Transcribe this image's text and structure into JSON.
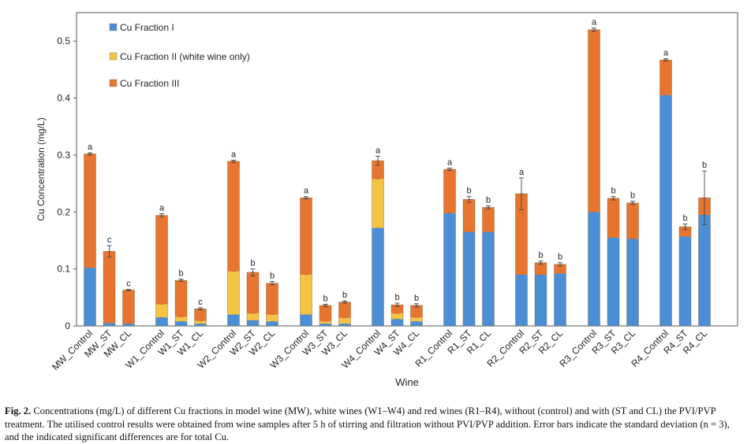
{
  "chart_data": {
    "type": "bar",
    "stacked": true,
    "ylabel": "Cu Concentration (mg/L)",
    "xlabel": "Wine",
    "ylim": [
      0,
      0.55
    ],
    "yticks": [
      "0",
      "0.1",
      "0.2",
      "0.3",
      "0.4",
      "0.5"
    ],
    "grid": false,
    "legend_position": "top-left",
    "categories": [
      "MW_Control",
      "MW_ST",
      "MW_CL",
      "W1_Control",
      "W1_ST",
      "W1_CL",
      "W2_Control",
      "W2_ST",
      "W2_CL",
      "W3_Control",
      "W3_ST",
      "W3_CL",
      "W4_Control",
      "W4_ST",
      "W4_CL",
      "R1_Control",
      "R1_ST",
      "R1_CL",
      "R2_Control",
      "R2_ST",
      "R2_CL",
      "R3_Control",
      "R3_ST",
      "R3_CL",
      "R4_Control",
      "R4_ST",
      "R4_CL"
    ],
    "series": [
      {
        "name": "Cu Fraction I",
        "color": "#4a8fd6",
        "values": [
          0.102,
          0.005,
          0.004,
          0.015,
          0.008,
          0.004,
          0.02,
          0.01,
          0.008,
          0.02,
          0.004,
          0.004,
          0.172,
          0.012,
          0.008,
          0.198,
          0.165,
          0.165,
          0.09,
          0.09,
          0.092,
          0.2,
          0.155,
          0.153,
          0.405,
          0.157,
          0.195
        ]
      },
      {
        "name": "Cu Fraction II (white wine only)",
        "color": "#f5c445",
        "values": [
          0,
          0,
          0,
          0.023,
          0.008,
          0.005,
          0.076,
          0.012,
          0.012,
          0.07,
          0.004,
          0.01,
          0.086,
          0.01,
          0.007,
          0,
          0,
          0,
          0,
          0,
          0,
          0,
          0,
          0,
          0,
          0,
          0
        ]
      },
      {
        "name": "Cu Fraction III",
        "color": "#e8752f",
        "values": [
          0.2,
          0.126,
          0.059,
          0.156,
          0.064,
          0.021,
          0.193,
          0.072,
          0.055,
          0.135,
          0.028,
          0.028,
          0.032,
          0.015,
          0.021,
          0.077,
          0.057,
          0.043,
          0.142,
          0.021,
          0.016,
          0.32,
          0.069,
          0.063,
          0.062,
          0.017,
          0.03
        ]
      }
    ],
    "error": [
      0.002,
      0.01,
      0.001,
      0.003,
      0.002,
      0.002,
      0.002,
      0.006,
      0.003,
      0.002,
      0.002,
      0.002,
      0.008,
      0.003,
      0.003,
      0.002,
      0.005,
      0.003,
      0.028,
      0.003,
      0.003,
      0.003,
      0.003,
      0.003,
      0.002,
      0.005,
      0.047
    ],
    "significance_labels": [
      "a",
      "c",
      "c",
      "a",
      "b",
      "c",
      "a",
      "b",
      "b",
      "a",
      "b",
      "b",
      "a",
      "b",
      "b",
      "a",
      "b",
      "b",
      "a",
      "b",
      "b",
      "a",
      "b",
      "b",
      "a",
      "b",
      "b"
    ]
  },
  "caption": {
    "label": "Fig. 2.",
    "text": "Concentrations (mg/L) of different Cu fractions in model wine (MW), white wines (W1–W4) and red wines (R1–R4), without (control) and with (ST and CL) the PVI/PVP treatment. The utilised control results were obtained from wine samples after 5 h of stirring and filtration without PVI/PVP addition. Error bars indicate the standard deviation (n = 3), and the indicated significant differences are for total Cu."
  }
}
